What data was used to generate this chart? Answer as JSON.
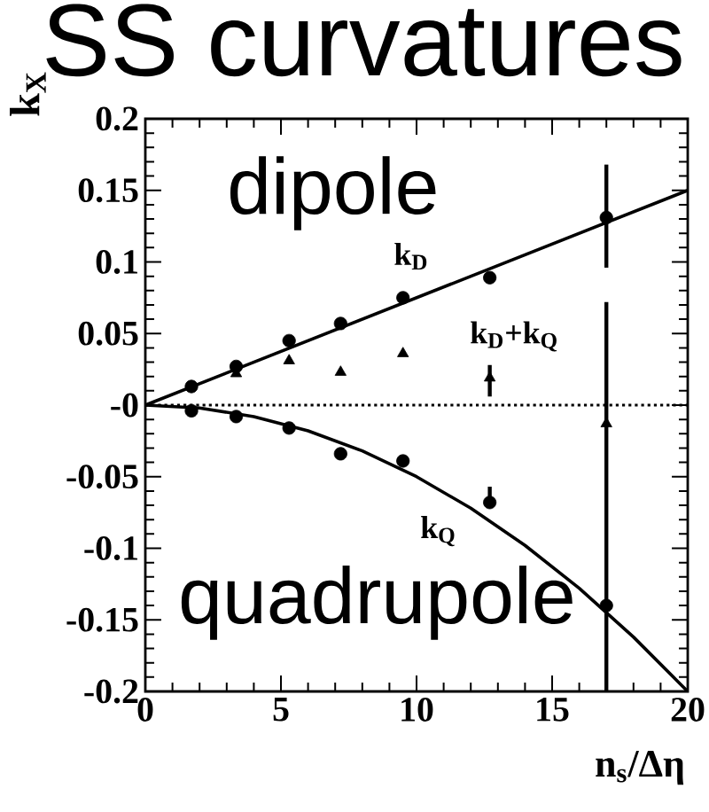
{
  "chart_data": {
    "type": "scatter",
    "title": "SS curvatures",
    "xlabel": "n$_{s}$/Δη",
    "ylabel": "k$_{X}$",
    "xlim": [
      0,
      20
    ],
    "ylim": [
      -0.2,
      0.2
    ],
    "xticks": [
      0,
      5,
      10,
      15,
      20
    ],
    "yticks": [
      -0.2,
      -0.15,
      -0.1,
      -0.05,
      {
        "value": 0,
        "label": "-0"
      },
      0.05,
      0.1,
      0.15,
      0.2
    ],
    "grid": false,
    "tick_labels": "xy",
    "x": [
      1.7,
      3.35,
      5.3,
      7.2,
      9.5,
      12.7,
      17.0
    ],
    "series": [
      {
        "color": "#000000",
        "marker": "circle",
        "values": [
          0.013,
          0.027,
          0.045,
          0.057,
          0.075,
          0.089,
          0.131
        ],
        "errors": [
          null,
          null,
          null,
          null,
          null,
          null,
          [
            0.096,
            0.168
          ]
        ]
      },
      {
        "color": "#000000",
        "marker": "triangle",
        "values": [
          null,
          0.022,
          0.031,
          0.023,
          0.036,
          0.019,
          -0.013
        ],
        "errors": [
          null,
          null,
          null,
          null,
          null,
          [
            0.006,
            0.028
          ],
          [
            -0.2,
            0.072
          ]
        ]
      },
      {
        "color": "#000000",
        "marker": "circle",
        "values": [
          -0.004,
          -0.008,
          -0.016,
          -0.034,
          -0.039,
          -0.068,
          -0.14
        ],
        "errors": [
          null,
          null,
          null,
          null,
          null,
          [
            -0.07,
            -0.057
          ],
          null
        ]
      },
      {
        "type": "line",
        "color": "#000000",
        "marker": "none",
        "line_style": "solid",
        "x": [
          0,
          20
        ],
        "values": [
          0,
          0.15
        ]
      },
      {
        "type": "line",
        "color": "#000000",
        "marker": "none",
        "line_style": "solid",
        "x": [
          0,
          2,
          4,
          6,
          8,
          10,
          12,
          14,
          16,
          18,
          20
        ],
        "values": [
          0,
          -0.002,
          -0.008,
          -0.018,
          -0.032,
          -0.05,
          -0.072,
          -0.098,
          -0.128,
          -0.162,
          -0.2
        ]
      }
    ],
    "ref_lines": [
      {
        "axis": "y",
        "value": 0,
        "line_style": "dotted"
      }
    ],
    "annotations": [
      "dipole",
      "quadrupole",
      "k$_{D}$",
      "k$_{D}$+k$_{Q}$",
      "k$_{Q}$"
    ]
  }
}
